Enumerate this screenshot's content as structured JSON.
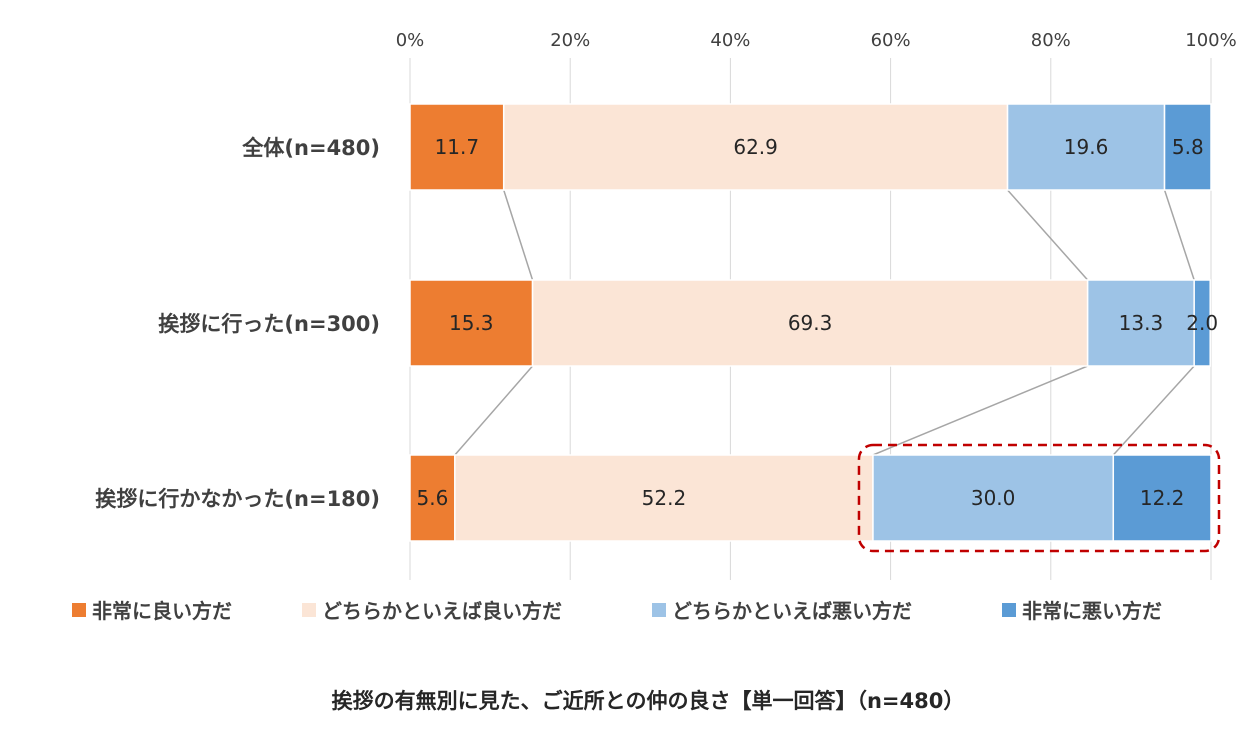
{
  "chart_data": {
    "type": "bar",
    "orientation": "horizontal",
    "stacked": "percent",
    "categories": [
      "全体(n=480)",
      "挨拶に行った(n=300)",
      "挨拶に行かなかった(n=180)"
    ],
    "series": [
      {
        "name": "非常に良い方だ",
        "values": [
          11.7,
          15.3,
          5.6
        ],
        "color": "#ED7D31"
      },
      {
        "name": "どちらかといえば良い方だ",
        "values": [
          62.9,
          69.3,
          52.2
        ],
        "color": "#FBE5D6"
      },
      {
        "name": "どちらかといえば悪い方だ",
        "values": [
          19.6,
          13.3,
          30.0
        ],
        "color": "#9DC3E6"
      },
      {
        "name": "非常に悪い方だ",
        "values": [
          5.8,
          2.0,
          12.2
        ],
        "color": "#5B9BD5"
      }
    ],
    "x_ticks": [
      "0%",
      "20%",
      "40%",
      "60%",
      "80%",
      "100%"
    ],
    "xlim": [
      0,
      100
    ],
    "grid": true,
    "legend_position": "bottom",
    "caption": "挨拶の有無別に見た、ご近所との仲の良さ【単一回答】（n=480）",
    "highlight": {
      "category_index": 2,
      "series_from": 2,
      "series_to": 3,
      "color": "#C00000"
    }
  }
}
